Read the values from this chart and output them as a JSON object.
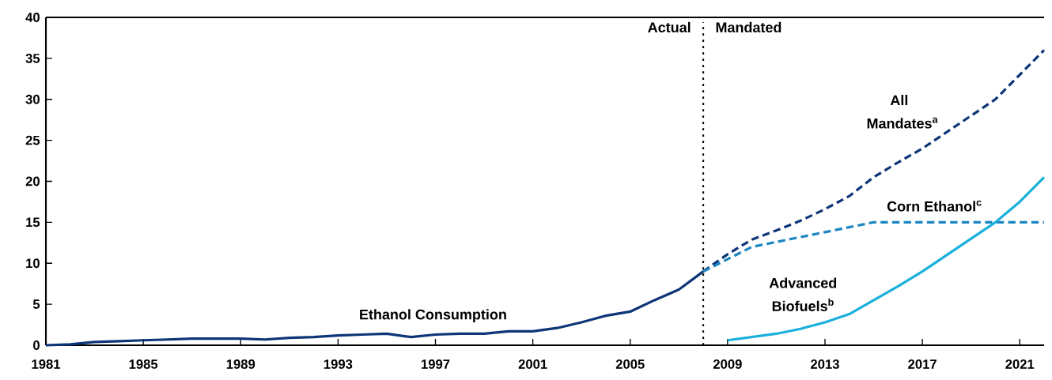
{
  "chart_data": {
    "type": "line",
    "xlim": [
      1981,
      2022
    ],
    "ylim": [
      0,
      40
    ],
    "xticks": [
      1981,
      1985,
      1989,
      1993,
      1997,
      2001,
      2005,
      2009,
      2013,
      2017,
      2021
    ],
    "yticks": [
      0,
      5,
      10,
      15,
      20,
      25,
      30,
      35,
      40
    ],
    "grid": false,
    "marker": "none",
    "series": [
      {
        "name": "Ethanol Consumption",
        "color": "#0d3577",
        "line_style": "solid",
        "x": [
          1981,
          1982,
          1983,
          1984,
          1985,
          1986,
          1987,
          1988,
          1989,
          1990,
          1991,
          1992,
          1993,
          1994,
          1995,
          1996,
          1997,
          1998,
          1999,
          2000,
          2001,
          2002,
          2003,
          2004,
          2005,
          2006,
          2007,
          2008
        ],
        "values": [
          0.0,
          0.1,
          0.4,
          0.5,
          0.6,
          0.7,
          0.8,
          0.8,
          0.8,
          0.7,
          0.9,
          1.0,
          1.2,
          1.3,
          1.4,
          1.0,
          1.3,
          1.4,
          1.4,
          1.7,
          1.7,
          2.1,
          2.8,
          3.6,
          4.1,
          5.5,
          6.8,
          9.0
        ]
      },
      {
        "name": "All Mandates$^{a}$",
        "color": "#0d3577",
        "line_style": "dashed",
        "x": [
          2008,
          2009,
          2010,
          2011,
          2012,
          2013,
          2014,
          2015,
          2016,
          2017,
          2018,
          2019,
          2020,
          2021,
          2022
        ],
        "values": [
          9.0,
          11.1,
          12.9,
          14.0,
          15.2,
          16.6,
          18.2,
          20.5,
          22.3,
          24.0,
          26.0,
          28.0,
          30.0,
          33.0,
          36.0
        ]
      },
      {
        "name": "Corn Ethanol$^{c}$",
        "color": "#1a85c2",
        "line_style": "dashed",
        "x": [
          2008,
          2009,
          2010,
          2011,
          2012,
          2013,
          2014,
          2015,
          2016,
          2017,
          2018,
          2019,
          2020,
          2021,
          2022
        ],
        "values": [
          9.0,
          10.5,
          12.0,
          12.6,
          13.2,
          13.8,
          14.4,
          15.0,
          15.0,
          15.0,
          15.0,
          15.0,
          15.0,
          15.0,
          15.0
        ]
      },
      {
        "name": "Advanced Biofuels$^{b}$",
        "color": "#1ab0dc",
        "line_style": "solid",
        "x": [
          2009,
          2010,
          2011,
          2012,
          2013,
          2014,
          2015,
          2016,
          2017,
          2018,
          2019,
          2020,
          2021,
          2022
        ],
        "values": [
          0.6,
          1.0,
          1.4,
          2.0,
          2.8,
          3.8,
          5.5,
          7.2,
          9.0,
          11.0,
          13.0,
          15.0,
          17.5,
          20.5
        ]
      }
    ],
    "ref_lines": [
      {
        "axis": "x",
        "value": 2008,
        "color": "#000000",
        "line_style": "dotted"
      }
    ],
    "annotations": [
      "Actual",
      "Mandated"
    ]
  }
}
